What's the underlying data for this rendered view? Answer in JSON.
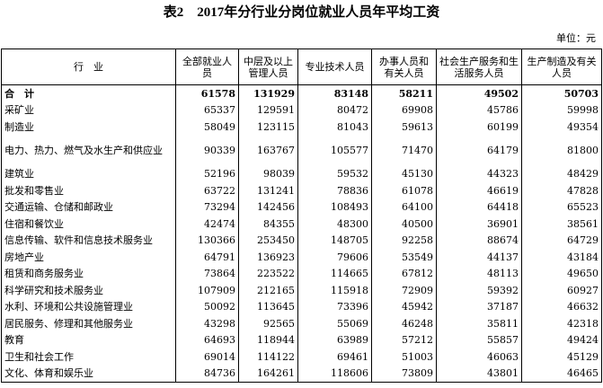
{
  "header": {
    "title": "表2　2017年分行业分岗位就业人员年平均工资",
    "unit": "单位：元"
  },
  "table": {
    "columns": [
      "行　业",
      "全部就业人员",
      "中层及以上管理人员",
      "专业技术人员",
      "办事人员和有关人员",
      "社会生产服务和生活服务人员",
      "生产制造及有关人员"
    ],
    "rows": [
      [
        "合　计",
        61578,
        131929,
        83148,
        58211,
        49502,
        50703
      ],
      [
        "采矿业",
        65337,
        129591,
        80472,
        69908,
        45786,
        59998
      ],
      [
        "制造业",
        58049,
        123115,
        81043,
        59613,
        60199,
        49354
      ],
      [
        "电力、热力、燃气及水生产和供应业",
        90339,
        163767,
        105577,
        71470,
        64179,
        81800
      ],
      [
        "建筑业",
        52196,
        98039,
        59532,
        45130,
        44323,
        48429
      ],
      [
        "批发和零售业",
        63722,
        131241,
        78836,
        61078,
        46619,
        47828
      ],
      [
        "交通运输、仓储和邮政业",
        73294,
        142456,
        108493,
        64100,
        64418,
        65523
      ],
      [
        "住宿和餐饮业",
        42474,
        84355,
        48300,
        40500,
        36901,
        38561
      ],
      [
        "信息传输、软件和信息技术服务业",
        130366,
        253450,
        148705,
        92258,
        88674,
        64729
      ],
      [
        "房地产业",
        64791,
        136923,
        79606,
        53549,
        44137,
        43184
      ],
      [
        "租赁和商务服务业",
        73864,
        223522,
        114665,
        67812,
        48113,
        49650
      ],
      [
        "科学研究和技术服务业",
        107909,
        212165,
        115918,
        72909,
        59392,
        60927
      ],
      [
        "水利、环境和公共设施管理业",
        50092,
        113645,
        73396,
        45942,
        37187,
        46632
      ],
      [
        "居民服务、修理和其他服务业",
        43298,
        92565,
        55069,
        46248,
        35811,
        42318
      ],
      [
        "教育",
        64693,
        118944,
        63989,
        57212,
        55857,
        49424
      ],
      [
        "卫生和社会工作",
        69014,
        114122,
        69461,
        51003,
        46063,
        45129
      ],
      [
        "文化、体育和娱乐业",
        84736,
        164261,
        118606,
        73809,
        43801,
        46465
      ]
    ]
  }
}
